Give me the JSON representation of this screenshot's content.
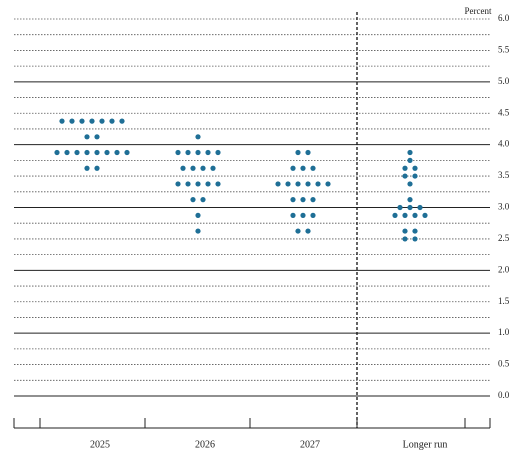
{
  "chart_data": {
    "type": "dot",
    "y_label": "Percent",
    "categories": [
      "2025",
      "2026",
      "2027",
      "Longer run"
    ],
    "color": "#1f6f96",
    "dots": [
      [
        {
          "rate": 4.375,
          "count": 7
        },
        {
          "rate": 4.125,
          "count": 2
        },
        {
          "rate": 3.875,
          "count": 8
        },
        {
          "rate": 3.625,
          "count": 2
        }
      ],
      [
        {
          "rate": 4.125,
          "count": 1
        },
        {
          "rate": 3.875,
          "count": 5
        },
        {
          "rate": 3.625,
          "count": 4
        },
        {
          "rate": 3.375,
          "count": 5
        },
        {
          "rate": 3.125,
          "count": 2
        },
        {
          "rate": 2.875,
          "count": 1
        },
        {
          "rate": 2.625,
          "count": 1
        }
      ],
      [
        {
          "rate": 3.875,
          "count": 2
        },
        {
          "rate": 3.625,
          "count": 3
        },
        {
          "rate": 3.375,
          "count": 6
        },
        {
          "rate": 3.125,
          "count": 3
        },
        {
          "rate": 2.875,
          "count": 3
        },
        {
          "rate": 2.625,
          "count": 2
        }
      ],
      [
        {
          "rate": 3.875,
          "count": 1
        },
        {
          "rate": 3.75,
          "count": 1
        },
        {
          "rate": 3.625,
          "count": 2
        },
        {
          "rate": 3.5,
          "count": 2
        },
        {
          "rate": 3.375,
          "count": 1
        },
        {
          "rate": 3.125,
          "count": 1
        },
        {
          "rate": 3.0,
          "count": 3
        },
        {
          "rate": 2.875,
          "count": 4
        },
        {
          "rate": 2.625,
          "count": 2
        },
        {
          "rate": 2.5,
          "count": 2
        }
      ]
    ],
    "ylim": [
      0,
      6
    ],
    "yticks": [
      {
        "value": 0,
        "label": "0.0"
      },
      {
        "value": 0.5,
        "label": "0.5"
      },
      {
        "value": 1,
        "label": "1.0"
      },
      {
        "value": 1.5,
        "label": "1.5"
      },
      {
        "value": 2,
        "label": "2.0"
      },
      {
        "value": 2.5,
        "label": "2.5"
      },
      {
        "value": 3,
        "label": "3.0"
      },
      {
        "value": 3.5,
        "label": "3.5"
      },
      {
        "value": 4,
        "label": "4.0"
      },
      {
        "value": 4.5,
        "label": "4.5"
      },
      {
        "value": 5,
        "label": "5.0"
      },
      {
        "value": 5.5,
        "label": "5.5"
      },
      {
        "value": 6,
        "label": "6.0"
      }
    ],
    "yminor": [
      0.25,
      0.75,
      1.25,
      1.75,
      2.25,
      2.75,
      3.25,
      3.75,
      4.25,
      4.75,
      5.25,
      5.75
    ],
    "grid": true
  }
}
